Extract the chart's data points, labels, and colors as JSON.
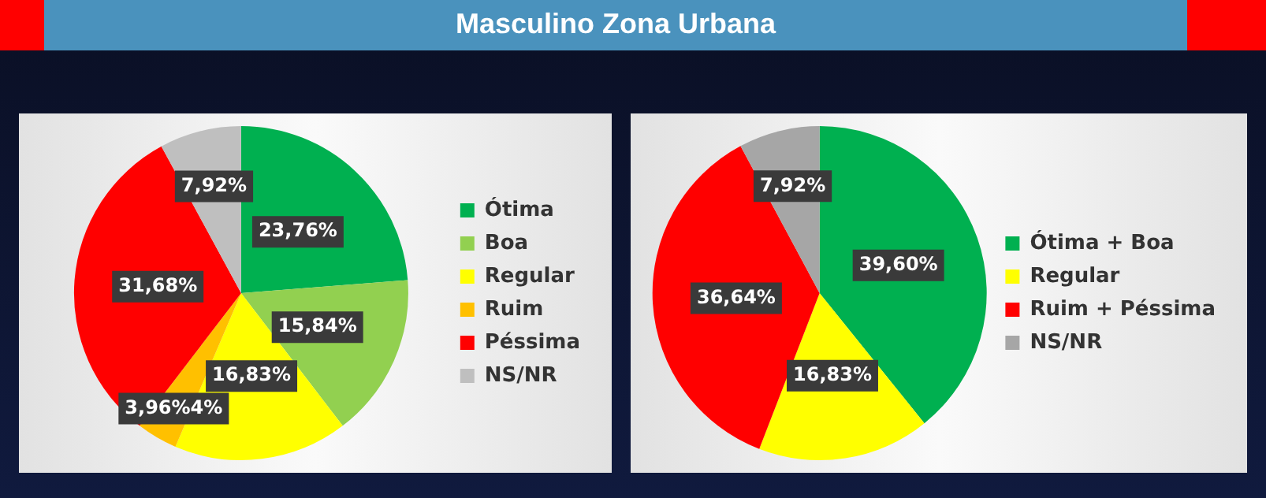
{
  "chart_data": [
    {
      "type": "pie",
      "title": "Masculino Zona Urbana",
      "categories": [
        "Ótima",
        "Boa",
        "Regular",
        "Ruim",
        "Péssima",
        "NS/NR"
      ],
      "values": [
        23.76,
        15.84,
        16.83,
        3.96,
        31.68,
        7.92
      ],
      "colors": [
        "#00b050",
        "#92d050",
        "#ffff00",
        "#ffc000",
        "#ff0000",
        "#bfbfbf"
      ],
      "value_labels": [
        "23,76%",
        "15,84%",
        "16,83%",
        "3,96%4%",
        "31,68%",
        "7,92%"
      ],
      "legend": "right"
    },
    {
      "type": "pie",
      "categories": [
        "Ótima + Boa",
        "Regular",
        "Ruim + Péssima",
        "NS/NR"
      ],
      "values": [
        39.6,
        16.83,
        36.64,
        7.92
      ],
      "colors": [
        "#00b050",
        "#ffff00",
        "#ff0000",
        "#a6a6a6"
      ],
      "value_labels": [
        "39,60%",
        "16,83%",
        "36,64%",
        "7,92%"
      ],
      "legend": "right"
    }
  ]
}
